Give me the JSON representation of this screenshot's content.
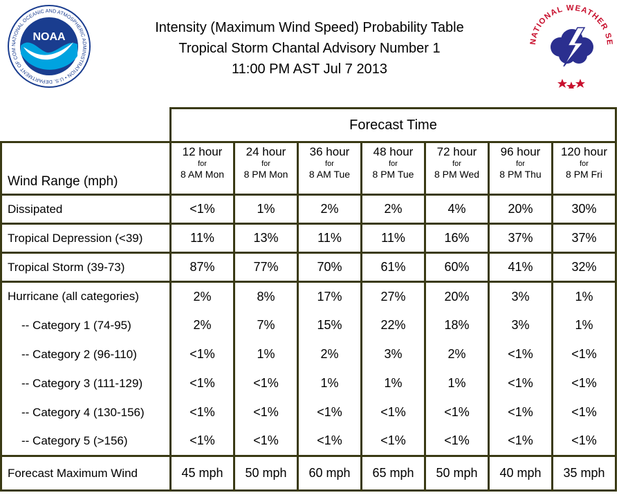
{
  "header": {
    "title_line1": "Intensity (Maximum Wind Speed) Probability Table",
    "title_line2": "Tropical Storm Chantal Advisory Number 1",
    "title_line3": "11:00 PM AST Jul 7 2013"
  },
  "logos": {
    "noaa": {
      "text": "NOAA",
      "ring_text": "NATIONAL OCEANIC AND ATMOSPHERIC ADMINISTRATION • U.S. DEPARTMENT OF COMMERCE",
      "color": "#1a3d8f"
    },
    "nws": {
      "ring_text": "NATIONAL WEATHER SERVICE",
      "color": "#c8102e",
      "cloud_color": "#2b2f8f"
    }
  },
  "chart_data": {
    "type": "table",
    "group_header": "Forecast Time",
    "row_header_label": "Wind Range (mph)",
    "columns": [
      {
        "hours": "12 hour",
        "for": "for",
        "time": "8 AM Mon"
      },
      {
        "hours": "24 hour",
        "for": "for",
        "time": "8 PM Mon"
      },
      {
        "hours": "36 hour",
        "for": "for",
        "time": "8 AM Tue"
      },
      {
        "hours": "48 hour",
        "for": "for",
        "time": "8 PM Tue"
      },
      {
        "hours": "72 hour",
        "for": "for",
        "time": "8 PM Wed"
      },
      {
        "hours": "96 hour",
        "for": "for",
        "time": "8 PM Thu"
      },
      {
        "hours": "120 hour",
        "for": "for",
        "time": "8 PM Fri"
      }
    ],
    "rows": [
      {
        "label": "Dissipated",
        "values": [
          "<1%",
          "1%",
          "2%",
          "2%",
          "4%",
          "20%",
          "30%"
        ]
      },
      {
        "label": "Tropical Depression (<39)",
        "values": [
          "11%",
          "13%",
          "11%",
          "11%",
          "16%",
          "37%",
          "37%"
        ]
      },
      {
        "label": "Tropical Storm (39-73)",
        "values": [
          "87%",
          "77%",
          "70%",
          "61%",
          "60%",
          "41%",
          "32%"
        ]
      },
      {
        "label": "Hurricane (all categories)",
        "values": [
          "2%",
          "8%",
          "17%",
          "27%",
          "20%",
          "3%",
          "1%"
        ]
      },
      {
        "label": "-- Category 1 (74-95)",
        "values": [
          "2%",
          "7%",
          "15%",
          "22%",
          "18%",
          "3%",
          "1%"
        ]
      },
      {
        "label": "-- Category 2 (96-110)",
        "values": [
          "<1%",
          "1%",
          "2%",
          "3%",
          "2%",
          "<1%",
          "<1%"
        ]
      },
      {
        "label": "-- Category 3 (111-129)",
        "values": [
          "<1%",
          "<1%",
          "1%",
          "1%",
          "1%",
          "<1%",
          "<1%"
        ]
      },
      {
        "label": "-- Category 4 (130-156)",
        "values": [
          "<1%",
          "<1%",
          "<1%",
          "<1%",
          "<1%",
          "<1%",
          "<1%"
        ]
      },
      {
        "label": "-- Category 5 (>156)",
        "values": [
          "<1%",
          "<1%",
          "<1%",
          "<1%",
          "<1%",
          "<1%",
          "<1%"
        ]
      },
      {
        "label": "Forecast Maximum Wind",
        "values": [
          "45 mph",
          "50 mph",
          "60 mph",
          "65 mph",
          "50 mph",
          "40 mph",
          "35 mph"
        ]
      }
    ]
  }
}
